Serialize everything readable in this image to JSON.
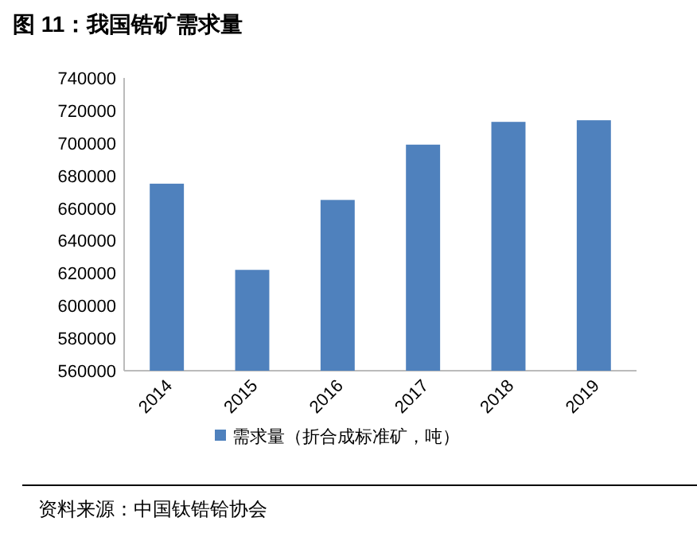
{
  "chart_data": {
    "type": "bar",
    "title": "图 11：我国锆矿需求量",
    "categories": [
      "2014",
      "2015",
      "2016",
      "2017",
      "2018",
      "2019"
    ],
    "series": [
      {
        "name": "需求量（折合成标准矿，吨）",
        "color": "#4f81bd",
        "values": [
          675000,
          622000,
          665000,
          699000,
          713000,
          714000
        ]
      }
    ],
    "ylim": [
      560000,
      740000
    ],
    "yticks": [
      560000,
      580000,
      600000,
      620000,
      640000,
      660000,
      680000,
      700000,
      720000,
      740000
    ],
    "legend": "bottom",
    "annotations": [
      "资料来源：中国钛锆铪协会"
    ]
  }
}
